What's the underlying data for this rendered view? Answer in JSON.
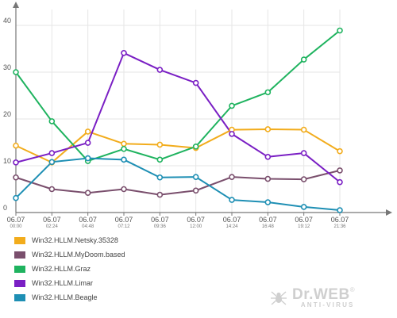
{
  "chart_data": {
    "type": "line",
    "title": "",
    "xlabel": "",
    "ylabel": "",
    "ylim": [
      0,
      40
    ],
    "yticks": [
      0,
      10,
      20,
      30,
      40
    ],
    "grid": true,
    "legend_position": "bottom-left",
    "categories": [
      {
        "date": "06.07",
        "time": "00:00"
      },
      {
        "date": "06.07",
        "time": "02:24"
      },
      {
        "date": "06.07",
        "time": "04:48"
      },
      {
        "date": "06.07",
        "time": "07:12"
      },
      {
        "date": "06.07",
        "time": "09:36"
      },
      {
        "date": "06.07",
        "time": "12:00"
      },
      {
        "date": "06.07",
        "time": "14:24"
      },
      {
        "date": "06.07",
        "time": "16:48"
      },
      {
        "date": "06.07",
        "time": "19:12"
      },
      {
        "date": "06.07",
        "time": "21:36"
      }
    ],
    "series": [
      {
        "name": "Win32.HLLM.Netsky.35328",
        "color": "#f2ac1c",
        "values": [
          14.3,
          10.7,
          17.3,
          14.7,
          14.5,
          13.8,
          17.7,
          17.8,
          17.7,
          13.1
        ]
      },
      {
        "name": "Win32.HLLM.MyDoom.based",
        "color": "#7a4f6d",
        "values": [
          7.5,
          5.0,
          4.2,
          5.0,
          3.8,
          4.7,
          7.6,
          7.2,
          7.1,
          9.0
        ]
      },
      {
        "name": "Win32.HLLM.Graz",
        "color": "#1fb35f",
        "values": [
          30.0,
          19.5,
          11.0,
          13.6,
          11.3,
          14.1,
          22.8,
          25.7,
          32.7,
          38.9
        ]
      },
      {
        "name": "Win32.HLLM.Limar",
        "color": "#7a1fc4",
        "values": [
          10.7,
          12.7,
          14.9,
          34.1,
          30.5,
          27.7,
          16.8,
          11.9,
          12.7,
          6.5
        ]
      },
      {
        "name": "Win32.HLLM.Beagle",
        "color": "#1e8fb4",
        "values": [
          3.1,
          10.8,
          11.6,
          11.3,
          7.5,
          7.6,
          2.7,
          2.2,
          1.2,
          0.5
        ]
      }
    ]
  },
  "brand": {
    "name": "Dr.WEB",
    "mark": "®",
    "tagline": "ANTI-VIRUS",
    "icon": "spider-icon"
  }
}
